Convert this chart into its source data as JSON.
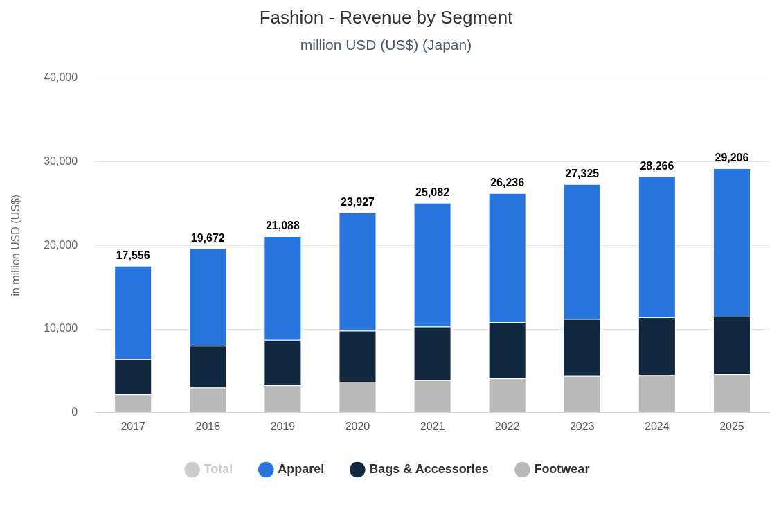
{
  "chart_data": {
    "type": "bar",
    "title": "Fashion - Revenue by Segment",
    "subtitle": "million USD (US$) (Japan)",
    "ylabel": "in million USD (US$)",
    "categories": [
      "2017",
      "2018",
      "2019",
      "2020",
      "2021",
      "2022",
      "2023",
      "2024",
      "2025"
    ],
    "series": [
      {
        "name": "Footwear",
        "color": "#b9b9b9",
        "values": [
          2200,
          3000,
          3300,
          3700,
          3900,
          4100,
          4400,
          4500,
          4600
        ]
      },
      {
        "name": "Bags & Accessories",
        "color": "#12283e",
        "values": [
          4200,
          5000,
          5400,
          6100,
          6400,
          6700,
          6800,
          6900,
          6900
        ]
      },
      {
        "name": "Apparel",
        "color": "#2876dd",
        "values": [
          11156,
          11672,
          12388,
          14127,
          14782,
          15436,
          16125,
          16866,
          17706
        ]
      },
      {
        "name": "Total",
        "color": "#cccccc",
        "values": [
          null,
          null,
          null,
          null,
          null,
          null,
          null,
          null,
          null
        ]
      }
    ],
    "stacked": true,
    "totals": [
      "17,556",
      "19,672",
      "21,088",
      "23,927",
      "25,082",
      "26,236",
      "27,325",
      "28,266",
      "29,206"
    ],
    "ylim": [
      0,
      40000
    ],
    "yticks": [
      0,
      {
        "value": 10000,
        "label": "10,000"
      },
      {
        "value": 20000,
        "label": "20,000"
      },
      {
        "value": 30000,
        "label": "30,000"
      },
      {
        "value": 40000,
        "label": "40,000"
      }
    ],
    "grid": "y",
    "legend": "bottom"
  }
}
